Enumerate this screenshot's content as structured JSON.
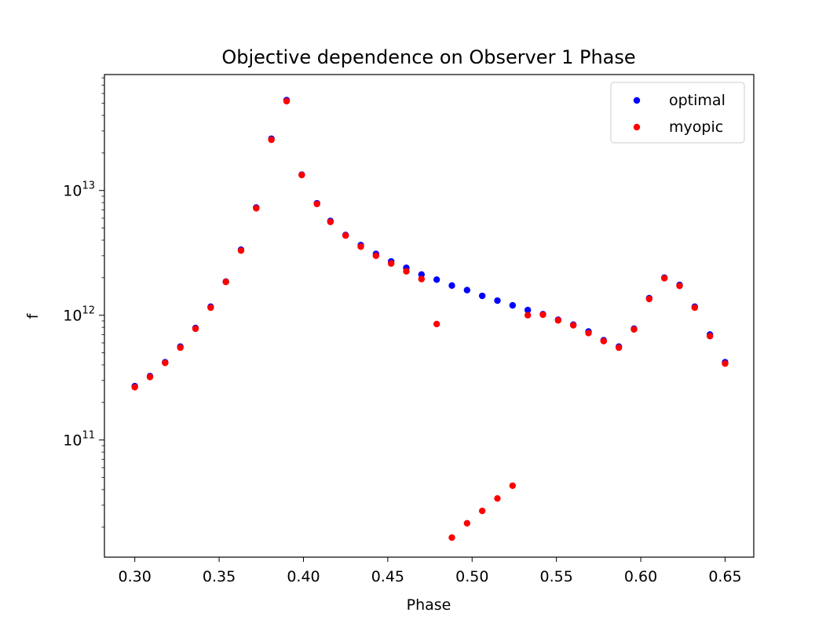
{
  "chart_data": {
    "type": "scatter",
    "title": "Objective dependence on Observer 1 Phase",
    "xlabel": "Phase",
    "ylabel": "f",
    "yscale": "log",
    "xlim": [
      0.282,
      0.667
    ],
    "ylim": [
      11500000000.0,
      85000000000000.0
    ],
    "xticks": [
      {
        "value": 0.3,
        "label": "0.30"
      },
      {
        "value": 0.35,
        "label": "0.35"
      },
      {
        "value": 0.4,
        "label": "0.40"
      },
      {
        "value": 0.45,
        "label": "0.45"
      },
      {
        "value": 0.5,
        "label": "0.50"
      },
      {
        "value": 0.55,
        "label": "0.55"
      },
      {
        "value": 0.6,
        "label": "0.60"
      },
      {
        "value": 0.65,
        "label": "0.65"
      }
    ],
    "yticks": [
      {
        "value": 100000000000.0,
        "base": "10",
        "exp": "11"
      },
      {
        "value": 1000000000000.0,
        "base": "10",
        "exp": "12"
      },
      {
        "value": 10000000000000.0,
        "base": "10",
        "exp": "13"
      }
    ],
    "legend_position": "upper-right",
    "series": [
      {
        "name": "optimal",
        "color": "#0000ff",
        "x": [
          0.3,
          0.309,
          0.318,
          0.327,
          0.336,
          0.345,
          0.354,
          0.363,
          0.372,
          0.381,
          0.39,
          0.399,
          0.408,
          0.416,
          0.425,
          0.434,
          0.443,
          0.452,
          0.461,
          0.47,
          0.479,
          0.488,
          0.497,
          0.506,
          0.515,
          0.524,
          0.533,
          0.542,
          0.551,
          0.56,
          0.569,
          0.578,
          0.587,
          0.596,
          0.605,
          0.614,
          0.623,
          0.632,
          0.641,
          0.65
        ],
        "y": [
          270000000000.0,
          325000000000.0,
          420000000000.0,
          560000000000.0,
          790000000000.0,
          1170000000000.0,
          1860000000000.0,
          3350000000000.0,
          7300000000000.0,
          26000000000000.0,
          53000000000000.0,
          13400000000000.0,
          7900000000000.0,
          5700000000000.0,
          4400000000000.0,
          3650000000000.0,
          3100000000000.0,
          2700000000000.0,
          2400000000000.0,
          2120000000000.0,
          1930000000000.0,
          1730000000000.0,
          1590000000000.0,
          1430000000000.0,
          1310000000000.0,
          1200000000000.0,
          1100000000000.0,
          1020000000000.0,
          920000000000.0,
          840000000000.0,
          740000000000.0,
          630000000000.0,
          560000000000.0,
          780000000000.0,
          1370000000000.0,
          2000000000000.0,
          1750000000000.0,
          1170000000000.0,
          700000000000.0,
          420000000000.0
        ]
      },
      {
        "name": "myopic",
        "color": "#ff0000",
        "x": [
          0.3,
          0.309,
          0.318,
          0.327,
          0.336,
          0.345,
          0.354,
          0.363,
          0.372,
          0.381,
          0.39,
          0.399,
          0.408,
          0.416,
          0.425,
          0.434,
          0.443,
          0.452,
          0.461,
          0.47,
          0.479,
          0.488,
          0.497,
          0.506,
          0.515,
          0.524,
          0.533,
          0.542,
          0.551,
          0.56,
          0.569,
          0.578,
          0.587,
          0.596,
          0.605,
          0.614,
          0.623,
          0.632,
          0.641,
          0.65
        ],
        "y": [
          265000000000.0,
          320000000000.0,
          415000000000.0,
          550000000000.0,
          780000000000.0,
          1150000000000.0,
          1850000000000.0,
          3300000000000.0,
          7200000000000.0,
          25500000000000.0,
          52000000000000.0,
          13300000000000.0,
          7800000000000.0,
          5600000000000.0,
          4350000000000.0,
          3550000000000.0,
          3000000000000.0,
          2600000000000.0,
          2250000000000.0,
          1950000000000.0,
          850000000000.0,
          16500000000.0,
          21500000000.0,
          27000000000.0,
          34000000000.0,
          43000000000.0,
          1000000000000.0,
          1010000000000.0,
          910000000000.0,
          830000000000.0,
          720000000000.0,
          620000000000.0,
          550000000000.0,
          770000000000.0,
          1350000000000.0,
          1980000000000.0,
          1720000000000.0,
          1150000000000.0,
          680000000000.0,
          410000000000.0
        ]
      }
    ]
  }
}
